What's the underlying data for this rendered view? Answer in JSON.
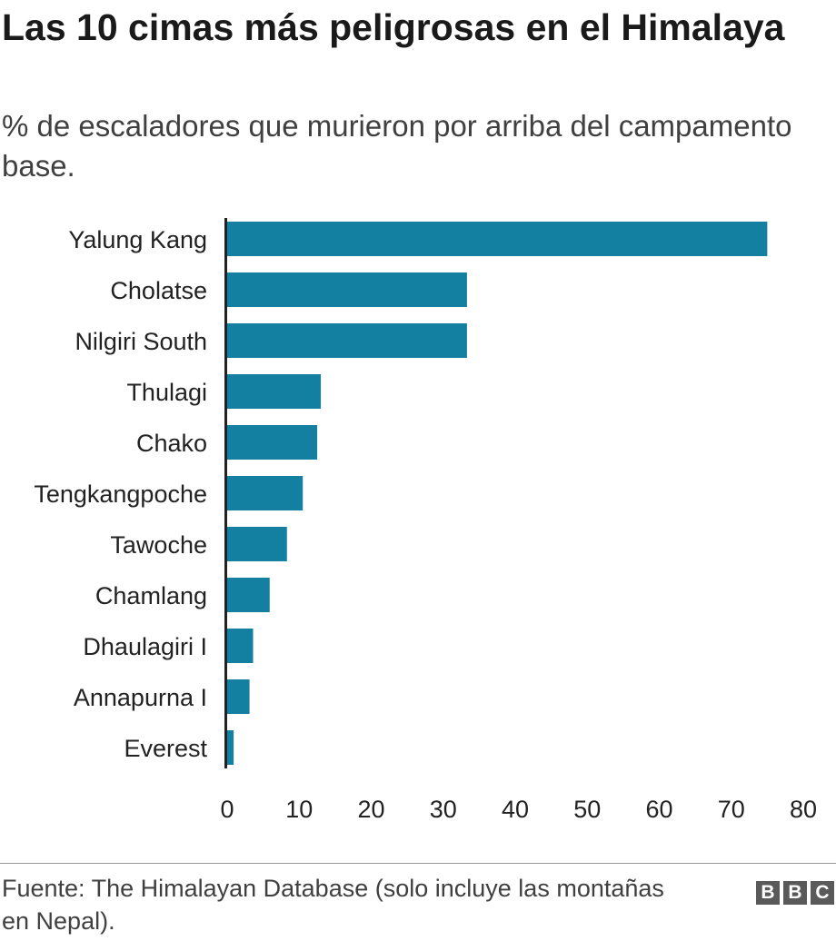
{
  "header": {
    "title": "Las 10 cimas más peligrosas en el Himalaya",
    "subtitle": "% de escaladores que murieron por arriba del campamento base."
  },
  "footer": {
    "source": "Fuente: The Himalayan Database (solo incluye las montañas en Nepal).",
    "logo": [
      "B",
      "B",
      "C"
    ]
  },
  "chart_data": {
    "type": "bar",
    "orientation": "horizontal",
    "title": "Las 10 cimas más peligrosas en el Himalaya",
    "subtitle": "% de escaladores que murieron por arriba del campamento base.",
    "categories": [
      "Yalung Kang",
      "Cholatse",
      "Nilgiri South",
      "Thulagi",
      "Chako",
      "Tengkangpoche",
      "Tawoche",
      "Chamlang",
      "Dhaulagiri I",
      "Annapurna I",
      "Everest"
    ],
    "values": [
      75,
      33.3,
      33.3,
      13,
      12.5,
      10.5,
      8.3,
      5.9,
      3.6,
      3.1,
      0.9
    ],
    "xlim": [
      0,
      80
    ],
    "xticks": [
      0,
      10,
      20,
      30,
      40,
      50,
      60,
      70,
      80
    ],
    "grid": false,
    "legend": "none",
    "bar_color": "#1380a1"
  }
}
